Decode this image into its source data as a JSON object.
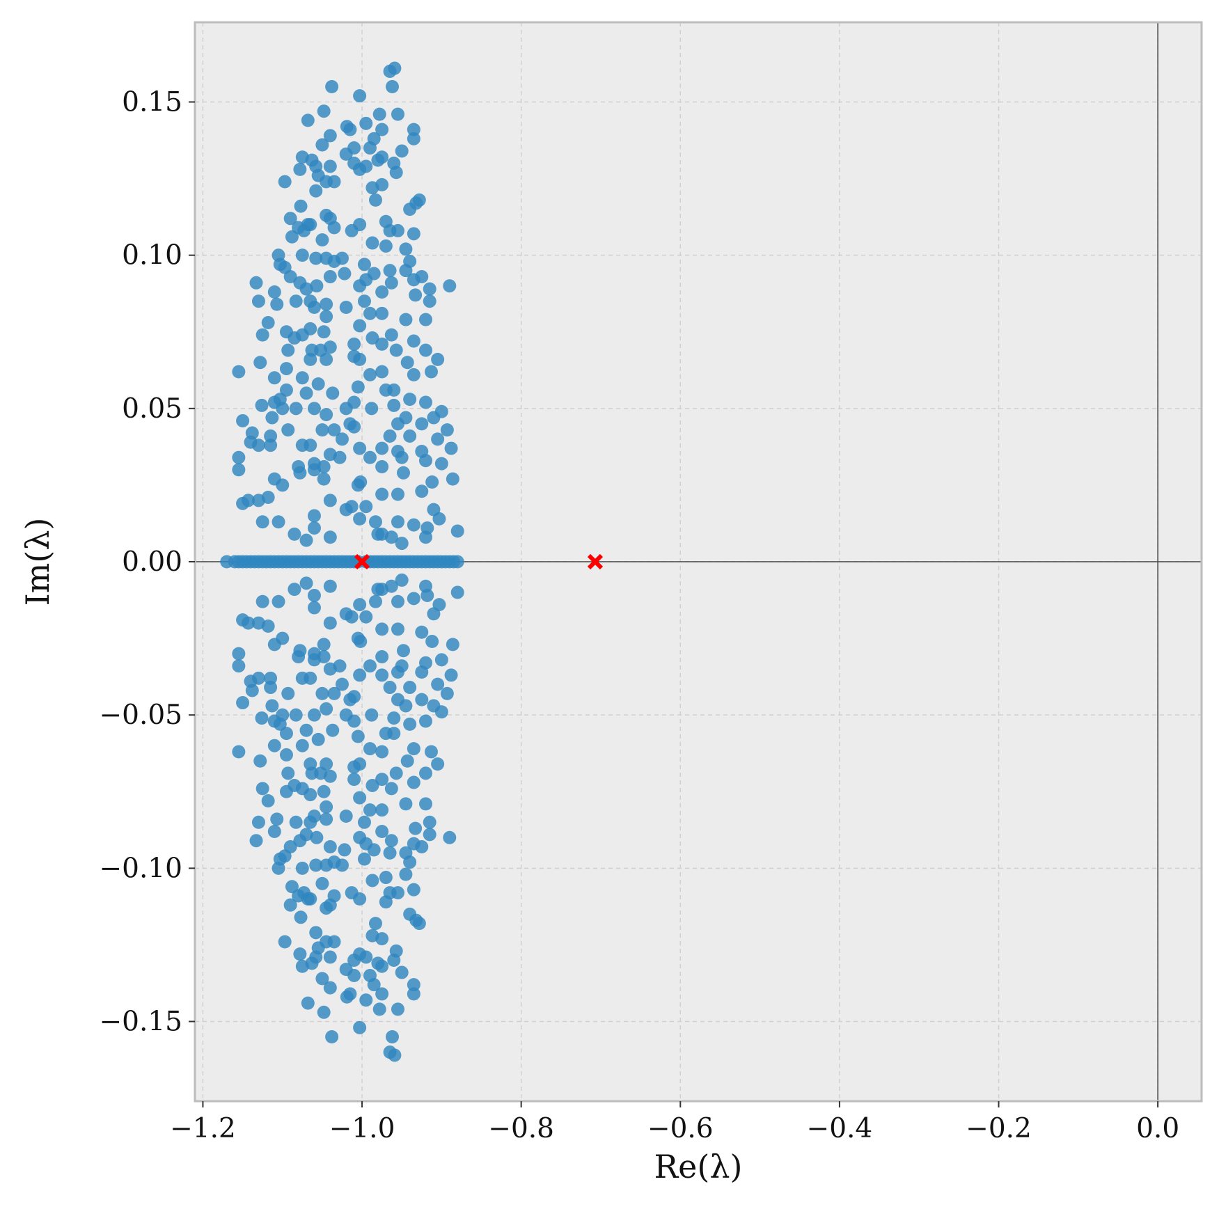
{
  "chart_data": {
    "type": "scatter",
    "xlabel": "Re(λ)",
    "ylabel": "Im(λ)",
    "xlim": [
      -1.21,
      0.055
    ],
    "ylim": [
      -0.176,
      0.176
    ],
    "x_ticks": [
      -1.2,
      -1.0,
      -0.8,
      -0.6,
      -0.4,
      -0.2,
      0.0
    ],
    "x_tick_labels": [
      "−1.2",
      "−1.0",
      "−0.8",
      "−0.6",
      "−0.4",
      "−0.2",
      "0.0"
    ],
    "y_ticks": [
      0.15,
      0.1,
      0.05,
      0.0,
      -0.05,
      -0.1,
      -0.15
    ],
    "y_tick_labels": [
      "0.15",
      "0.10",
      "0.05",
      "0.00",
      "−0.05",
      "−0.10",
      "−0.15"
    ],
    "grid": true,
    "background": "#ececec",
    "colors": {
      "points": "#2f86c0",
      "markers": "#ff0000",
      "zero_lines": "#444444",
      "grid": "#d0d0d0"
    },
    "reference_lines": {
      "x": 0.0,
      "y": 0.0
    },
    "markers": [
      {
        "symbol": "x",
        "x": -1.0,
        "y": 0.0
      },
      {
        "symbol": "x",
        "x": -0.707,
        "y": 0.0
      }
    ],
    "series": [
      {
        "marker": "circle",
        "real_eigenvalues_x": [
          -1.17,
          -1.16,
          -1.155,
          -1.15,
          -1.145,
          -1.14,
          -1.135,
          -1.13,
          -1.125,
          -1.12,
          -1.115,
          -1.11,
          -1.105,
          -1.1,
          -1.095,
          -1.09,
          -1.085,
          -1.08,
          -1.075,
          -1.07,
          -1.065,
          -1.06,
          -1.055,
          -1.05,
          -1.045,
          -1.04,
          -1.035,
          -1.03,
          -1.025,
          -1.02,
          -1.015,
          -1.01,
          -1.005,
          -0.995,
          -0.99,
          -0.985,
          -0.98,
          -0.975,
          -0.97,
          -0.965,
          -0.96,
          -0.955,
          -0.95,
          -0.945,
          -0.94,
          -0.935,
          -0.93,
          -0.925,
          -0.92,
          -0.915,
          -0.91,
          -0.905,
          -0.9,
          -0.895,
          -0.89,
          -0.885,
          -0.88
        ],
        "points": [
          [
            -0.959,
            0.161
          ],
          [
            -0.965,
            0.16
          ],
          [
            -1.038,
            0.155
          ],
          [
            -0.962,
            0.155
          ],
          [
            -1.003,
            0.152
          ],
          [
            -1.048,
            0.147
          ],
          [
            -0.978,
            0.146
          ],
          [
            -0.955,
            0.146
          ],
          [
            -1.068,
            0.144
          ],
          [
            -0.995,
            0.143
          ],
          [
            -1.019,
            0.142
          ],
          [
            -1.015,
            0.141
          ],
          [
            -0.975,
            0.141
          ],
          [
            -0.935,
            0.141
          ],
          [
            -1.04,
            0.139
          ],
          [
            -0.985,
            0.138
          ],
          [
            -0.935,
            0.138
          ],
          [
            -1.05,
            0.136
          ],
          [
            -1.01,
            0.135
          ],
          [
            -0.99,
            0.135
          ],
          [
            -0.95,
            0.134
          ],
          [
            -1.02,
            0.133
          ],
          [
            -1.075,
            0.132
          ],
          [
            -0.975,
            0.132
          ],
          [
            -1.063,
            0.131
          ],
          [
            -1.01,
            0.13
          ],
          [
            -0.96,
            0.13
          ],
          [
            -0.98,
            0.131
          ],
          [
            -1.04,
            0.129
          ],
          [
            -1.058,
            0.129
          ],
          [
            -1.078,
            0.128
          ],
          [
            -0.995,
            0.129
          ],
          [
            -1.003,
            0.128
          ],
          [
            -0.957,
            0.127
          ],
          [
            -1.055,
            0.126
          ],
          [
            -1.045,
            0.124
          ],
          [
            -1.097,
            0.124
          ],
          [
            -1.035,
            0.124
          ],
          [
            -0.987,
            0.122
          ],
          [
            -1.058,
            0.121
          ],
          [
            -0.975,
            0.123
          ],
          [
            -0.928,
            0.118
          ],
          [
            -0.932,
            0.117
          ],
          [
            -0.983,
            0.118
          ],
          [
            -1.077,
            0.116
          ],
          [
            -0.94,
            0.115
          ],
          [
            -1.045,
            0.113
          ],
          [
            -1.04,
            0.112
          ],
          [
            -1.09,
            0.112
          ],
          [
            -1.065,
            0.11
          ],
          [
            -1.08,
            0.109
          ],
          [
            -1.035,
            0.109
          ],
          [
            -1.003,
            0.11
          ],
          [
            -0.97,
            0.111
          ],
          [
            -1.073,
            0.108
          ],
          [
            -1.013,
            0.108
          ],
          [
            -1.068,
            0.11
          ],
          [
            -0.965,
            0.108
          ],
          [
            -0.955,
            0.108
          ],
          [
            -0.935,
            0.107
          ],
          [
            -1.088,
            0.106
          ],
          [
            -1.05,
            0.105
          ],
          [
            -0.987,
            0.104
          ],
          [
            -0.97,
            0.103
          ],
          [
            -0.945,
            0.102
          ],
          [
            -1.025,
            0.099
          ],
          [
            -1.045,
            0.099
          ],
          [
            -1.035,
            0.098
          ],
          [
            -1.105,
            0.1
          ],
          [
            -1.075,
            0.1
          ],
          [
            -1.103,
            0.097
          ],
          [
            -1.058,
            0.099
          ],
          [
            -0.94,
            0.098
          ],
          [
            -1.097,
            0.096
          ],
          [
            -0.997,
            0.097
          ],
          [
            -0.965,
            0.095
          ],
          [
            -0.945,
            0.095
          ],
          [
            -0.985,
            0.094
          ],
          [
            -1.04,
            0.093
          ],
          [
            -1.09,
            0.093
          ],
          [
            -1.022,
            0.094
          ],
          [
            -0.995,
            0.092
          ],
          [
            -0.925,
            0.093
          ],
          [
            -0.935,
            0.092
          ],
          [
            -1.003,
            0.09
          ],
          [
            -1.078,
            0.091
          ],
          [
            -1.133,
            0.091
          ],
          [
            -0.963,
            0.091
          ],
          [
            -1.057,
            0.09
          ],
          [
            -0.89,
            0.09
          ],
          [
            -1.07,
            0.089
          ],
          [
            -0.915,
            0.089
          ],
          [
            -1.11,
            0.088
          ],
          [
            -0.975,
            0.088
          ],
          [
            -0.933,
            0.087
          ],
          [
            -1.083,
            0.085
          ],
          [
            -1.045,
            0.084
          ],
          [
            -1.065,
            0.085
          ],
          [
            -1.13,
            0.085
          ],
          [
            -1.107,
            0.084
          ],
          [
            -0.915,
            0.085
          ],
          [
            -1.06,
            0.083
          ],
          [
            -0.997,
            0.085
          ],
          [
            -1.02,
            0.083
          ],
          [
            -1.045,
            0.08
          ],
          [
            -0.99,
            0.081
          ],
          [
            -0.975,
            0.081
          ],
          [
            -0.945,
            0.079
          ],
          [
            -0.92,
            0.079
          ],
          [
            -1.118,
            0.078
          ],
          [
            -1.003,
            0.077
          ],
          [
            -1.065,
            0.076
          ],
          [
            -1.048,
            0.075
          ],
          [
            -1.095,
            0.075
          ],
          [
            -1.075,
            0.074
          ],
          [
            -1.085,
            0.073
          ],
          [
            -1.125,
            0.074
          ],
          [
            -0.963,
            0.074
          ],
          [
            -0.935,
            0.072
          ],
          [
            -0.987,
            0.073
          ],
          [
            -1.04,
            0.07
          ],
          [
            -1.01,
            0.071
          ],
          [
            -0.975,
            0.071
          ],
          [
            -1.052,
            0.069
          ],
          [
            -1.01,
            0.067
          ],
          [
            -1.063,
            0.069
          ],
          [
            -1.093,
            0.069
          ],
          [
            -0.957,
            0.069
          ],
          [
            -0.92,
            0.069
          ],
          [
            -0.905,
            0.066
          ],
          [
            -1.003,
            0.066
          ],
          [
            -1.065,
            0.066
          ],
          [
            -1.045,
            0.066
          ],
          [
            -1.128,
            0.065
          ],
          [
            -0.943,
            0.065
          ],
          [
            -1.095,
            0.063
          ],
          [
            -0.975,
            0.062
          ],
          [
            -0.913,
            0.062
          ],
          [
            -1.155,
            0.062
          ],
          [
            -0.935,
            0.061
          ],
          [
            -0.99,
            0.061
          ],
          [
            -1.075,
            0.06
          ],
          [
            -1.11,
            0.06
          ],
          [
            -1.055,
            0.058
          ],
          [
            -1.005,
            0.057
          ],
          [
            -0.96,
            0.056
          ],
          [
            -0.97,
            0.056
          ],
          [
            -1.095,
            0.056
          ],
          [
            -1.07,
            0.055
          ],
          [
            -1.037,
            0.055
          ],
          [
            -0.94,
            0.053
          ],
          [
            -1.103,
            0.053
          ],
          [
            -1.11,
            0.052
          ],
          [
            -0.92,
            0.052
          ],
          [
            -1.01,
            0.052
          ],
          [
            -1.126,
            0.051
          ],
          [
            -0.988,
            0.05
          ],
          [
            -0.96,
            0.051
          ],
          [
            -1.02,
            0.05
          ],
          [
            -0.9,
            0.049
          ],
          [
            -1.06,
            0.05
          ],
          [
            -1.083,
            0.05
          ],
          [
            -1.1,
            0.05
          ],
          [
            -1.045,
            0.048
          ],
          [
            -0.945,
            0.047
          ],
          [
            -1.113,
            0.047
          ],
          [
            -0.91,
            0.047
          ],
          [
            -1.015,
            0.045
          ],
          [
            -0.955,
            0.045
          ],
          [
            -1.15,
            0.046
          ],
          [
            -0.925,
            0.045
          ],
          [
            -1.01,
            0.044
          ],
          [
            -1.035,
            0.043
          ],
          [
            -1.093,
            0.043
          ],
          [
            -1.05,
            0.043
          ],
          [
            -0.893,
            0.043
          ],
          [
            -1.138,
            0.042
          ],
          [
            -1.115,
            0.041
          ],
          [
            -0.965,
            0.041
          ],
          [
            -1.025,
            0.04
          ],
          [
            -0.94,
            0.041
          ],
          [
            -0.905,
            0.04
          ],
          [
            -1.065,
            0.038
          ],
          [
            -1.14,
            0.039
          ],
          [
            -1.13,
            0.038
          ],
          [
            -1.115,
            0.038
          ],
          [
            -1.075,
            0.038
          ],
          [
            -0.975,
            0.037
          ],
          [
            -1.003,
            0.037
          ],
          [
            -0.955,
            0.036
          ],
          [
            -0.925,
            0.036
          ],
          [
            -0.888,
            0.037
          ],
          [
            -0.95,
            0.034
          ],
          [
            -1.04,
            0.035
          ],
          [
            -1.028,
            0.034
          ],
          [
            -0.99,
            0.034
          ],
          [
            -1.06,
            0.032
          ],
          [
            -1.08,
            0.031
          ],
          [
            -0.9,
            0.032
          ],
          [
            -1.155,
            0.034
          ],
          [
            -1.048,
            0.031
          ],
          [
            -0.975,
            0.031
          ],
          [
            -0.92,
            0.033
          ],
          [
            -1.06,
            0.03
          ],
          [
            -1.155,
            0.03
          ],
          [
            -0.948,
            0.029
          ],
          [
            -1.078,
            0.029
          ],
          [
            -1.002,
            0.026
          ],
          [
            -1.048,
            0.027
          ],
          [
            -0.886,
            0.027
          ],
          [
            -1.11,
            0.027
          ],
          [
            -1.1,
            0.025
          ],
          [
            -0.912,
            0.026
          ],
          [
            -1.005,
            0.025
          ],
          [
            -0.975,
            0.022
          ],
          [
            -0.955,
            0.022
          ],
          [
            -1.118,
            0.021
          ],
          [
            -0.925,
            0.023
          ],
          [
            -1.143,
            0.02
          ],
          [
            -1.13,
            0.02
          ],
          [
            -0.995,
            0.018
          ],
          [
            -1.013,
            0.018
          ],
          [
            -1.02,
            0.017
          ],
          [
            -1.04,
            0.02
          ],
          [
            -0.91,
            0.017
          ],
          [
            -1.15,
            0.019
          ],
          [
            -1.06,
            0.015
          ],
          [
            -1.003,
            0.014
          ],
          [
            -0.983,
            0.013
          ],
          [
            -0.955,
            0.013
          ],
          [
            -1.105,
            0.013
          ],
          [
            -0.903,
            0.014
          ],
          [
            -1.125,
            0.013
          ],
          [
            -0.935,
            0.012
          ],
          [
            -1.06,
            0.011
          ],
          [
            -0.918,
            0.011
          ],
          [
            -0.88,
            0.01
          ],
          [
            -1.085,
            0.009
          ],
          [
            -0.975,
            0.009
          ],
          [
            -1.07,
            0.007
          ],
          [
            -0.963,
            0.008
          ],
          [
            -0.98,
            0.009
          ],
          [
            -1.04,
            0.008
          ],
          [
            -0.95,
            0.006
          ],
          [
            -0.92,
            0.008
          ]
        ],
        "symmetric_about_real_axis": true
      }
    ]
  }
}
